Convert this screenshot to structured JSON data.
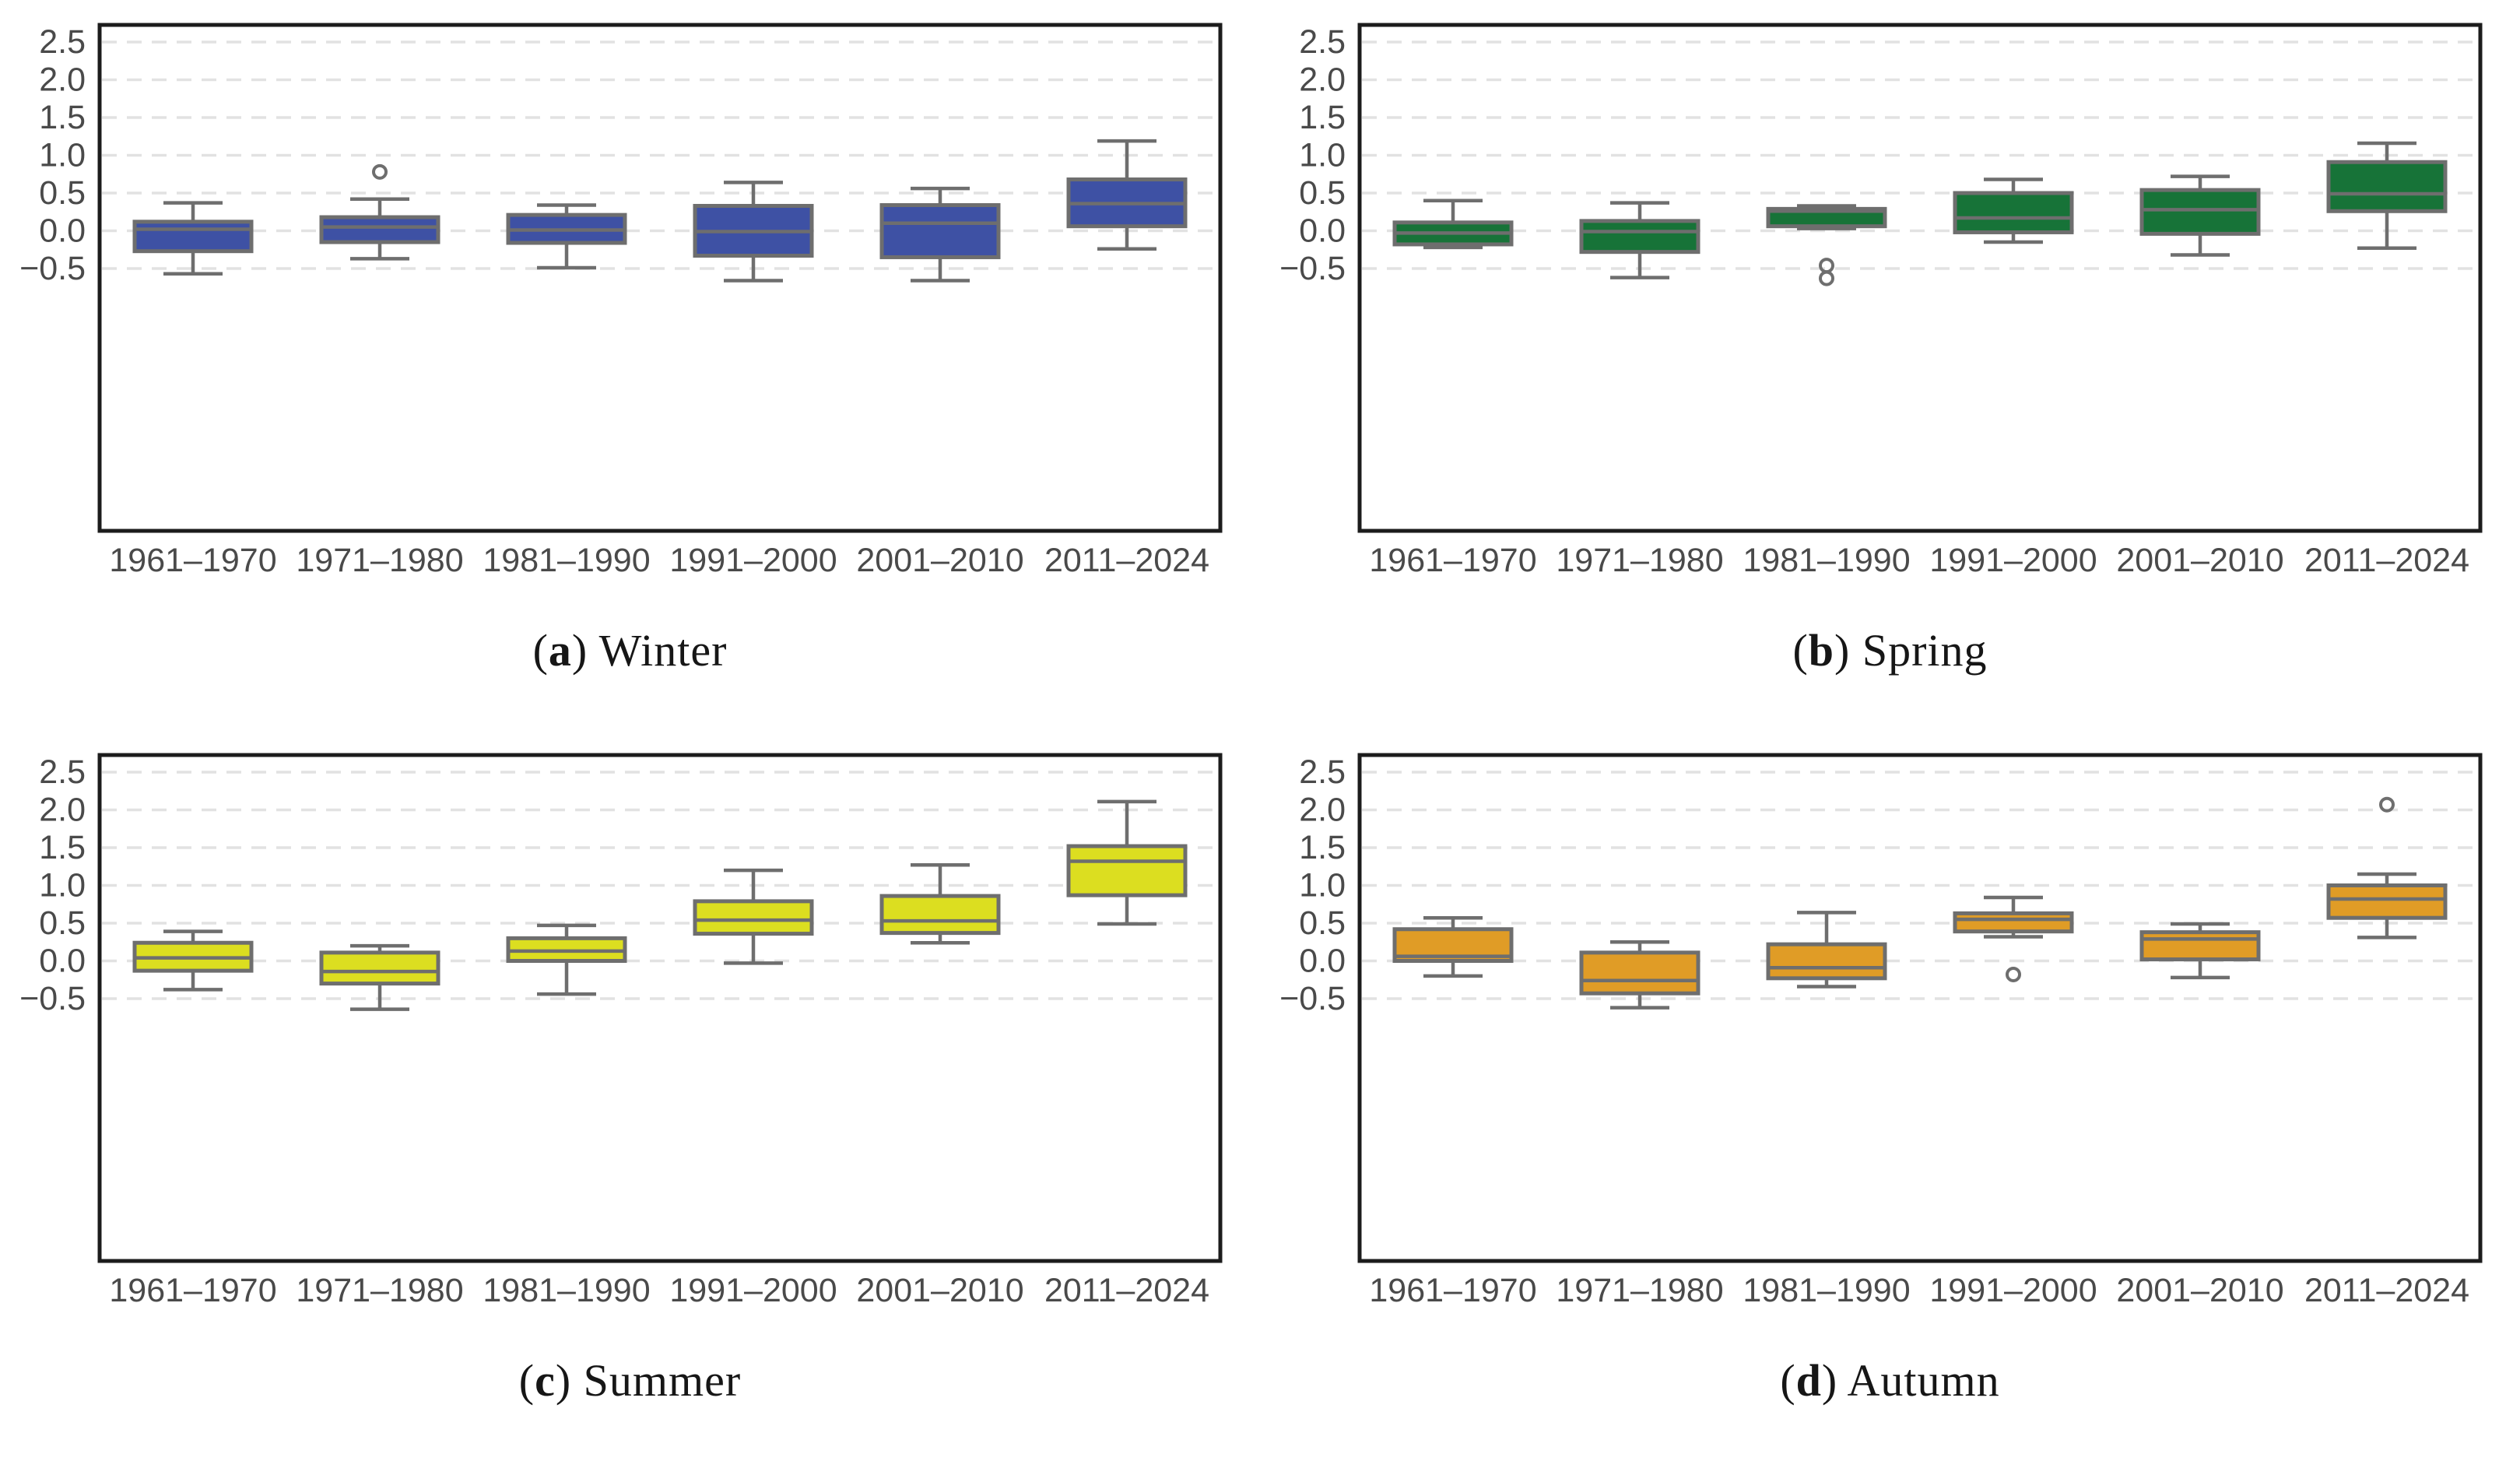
{
  "figure": {
    "background": "#ffffff",
    "grid_color": "#e2e2e2",
    "axis_border_color": "#1c1c1c",
    "box_stroke_color": "#6e6e6e",
    "tick_label_color": "#4a4a4a",
    "y_tick_labels": [
      "2.5",
      "2.0",
      "1.5",
      "1.0",
      "0.5",
      "0.0",
      "−0.5"
    ]
  },
  "chart_data": [
    {
      "type": "boxplot",
      "panel_index": 0,
      "caption": {
        "open": "(",
        "letter": "a",
        "close": ")",
        "label": " Winter"
      },
      "box_color": "#3e51a4",
      "ylim": [
        -0.85,
        2.79
      ],
      "y_ticks": [
        2.5,
        2.0,
        1.5,
        1.0,
        0.5,
        0.0,
        -0.5
      ],
      "grid": "dashed-horizontal",
      "categories": [
        "1961–1970",
        "1971–1980",
        "1981–1990",
        "1991–2000",
        "2001–2010",
        "2011–2024"
      ],
      "boxes": [
        {
          "category": "1961–1970",
          "whisker_low": -0.57,
          "q1": -0.27,
          "median": 0.02,
          "q3": 0.12,
          "whisker_high": 0.37,
          "outliers": []
        },
        {
          "category": "1971–1980",
          "whisker_low": -0.37,
          "q1": -0.15,
          "median": 0.05,
          "q3": 0.18,
          "whisker_high": 0.42,
          "outliers": [
            0.78
          ]
        },
        {
          "category": "1981–1990",
          "whisker_low": -0.49,
          "q1": -0.16,
          "median": 0.01,
          "q3": 0.21,
          "whisker_high": 0.34,
          "outliers": []
        },
        {
          "category": "1991–2000",
          "whisker_low": -0.66,
          "q1": -0.33,
          "median": -0.01,
          "q3": 0.33,
          "whisker_high": 0.64,
          "outliers": []
        },
        {
          "category": "2001–2010",
          "whisker_low": -0.66,
          "q1": -0.35,
          "median": 0.1,
          "q3": 0.34,
          "whisker_high": 0.56,
          "outliers": []
        },
        {
          "category": "2011–2024",
          "whisker_low": -0.24,
          "q1": 0.06,
          "median": 0.36,
          "q3": 0.68,
          "whisker_high": 1.19,
          "outliers": []
        }
      ]
    },
    {
      "type": "boxplot",
      "panel_index": 1,
      "caption": {
        "open": "(",
        "letter": "b",
        "close": ")",
        "label": " Spring"
      },
      "box_color": "#177338",
      "ylim": [
        -0.85,
        2.79
      ],
      "y_ticks": [
        2.5,
        2.0,
        1.5,
        1.0,
        0.5,
        0.0,
        -0.5
      ],
      "grid": "dashed-horizontal",
      "categories": [
        "1961–1970",
        "1971–1980",
        "1981–1990",
        "1991–2000",
        "2001–2010",
        "2011–2024"
      ],
      "boxes": [
        {
          "category": "1961–1970",
          "whisker_low": -0.22,
          "q1": -0.18,
          "median": -0.03,
          "q3": 0.11,
          "whisker_high": 0.4,
          "outliers": []
        },
        {
          "category": "1971–1980",
          "whisker_low": -0.62,
          "q1": -0.28,
          "median": -0.01,
          "q3": 0.13,
          "whisker_high": 0.37,
          "outliers": []
        },
        {
          "category": "1981–1990",
          "whisker_low": 0.03,
          "q1": 0.06,
          "median": 0.26,
          "q3": 0.29,
          "whisker_high": 0.33,
          "outliers": [
            -0.46,
            -0.63
          ]
        },
        {
          "category": "1991–2000",
          "whisker_low": -0.15,
          "q1": -0.02,
          "median": 0.17,
          "q3": 0.5,
          "whisker_high": 0.68,
          "outliers": []
        },
        {
          "category": "2001–2010",
          "whisker_low": -0.32,
          "q1": -0.04,
          "median": 0.28,
          "q3": 0.54,
          "whisker_high": 0.72,
          "outliers": []
        },
        {
          "category": "2011–2024",
          "whisker_low": -0.23,
          "q1": 0.26,
          "median": 0.49,
          "q3": 0.91,
          "whisker_high": 1.16,
          "outliers": []
        }
      ]
    },
    {
      "type": "boxplot",
      "panel_index": 2,
      "caption": {
        "open": "(",
        "letter": "c",
        "close": ")",
        "label": " Summer"
      },
      "box_color": "#dcde20",
      "ylim": [
        -0.85,
        2.79
      ],
      "y_ticks": [
        2.5,
        2.0,
        1.5,
        1.0,
        0.5,
        0.0,
        -0.5
      ],
      "grid": "dashed-horizontal",
      "categories": [
        "1961–1970",
        "1971–1980",
        "1981–1990",
        "1991–2000",
        "2001–2010",
        "2011–2024"
      ],
      "boxes": [
        {
          "category": "1961–1970",
          "whisker_low": -0.38,
          "q1": -0.13,
          "median": 0.04,
          "q3": 0.24,
          "whisker_high": 0.39,
          "outliers": []
        },
        {
          "category": "1971–1980",
          "whisker_low": -0.64,
          "q1": -0.3,
          "median": -0.14,
          "q3": 0.11,
          "whisker_high": 0.2,
          "outliers": []
        },
        {
          "category": "1981–1990",
          "whisker_low": -0.44,
          "q1": 0.0,
          "median": 0.13,
          "q3": 0.3,
          "whisker_high": 0.47,
          "outliers": []
        },
        {
          "category": "1991–2000",
          "whisker_low": -0.03,
          "q1": 0.36,
          "median": 0.54,
          "q3": 0.79,
          "whisker_high": 1.2,
          "outliers": []
        },
        {
          "category": "2001–2010",
          "whisker_low": 0.24,
          "q1": 0.37,
          "median": 0.53,
          "q3": 0.86,
          "whisker_high": 1.27,
          "outliers": []
        },
        {
          "category": "2011–2024",
          "whisker_low": 0.49,
          "q1": 0.87,
          "median": 1.32,
          "q3": 1.52,
          "whisker_high": 2.11,
          "outliers": []
        }
      ]
    },
    {
      "type": "boxplot",
      "panel_index": 3,
      "caption": {
        "open": "(",
        "letter": "d",
        "close": ")",
        "label": " Autumn"
      },
      "box_color": "#e09c26",
      "ylim": [
        -0.85,
        2.79
      ],
      "y_ticks": [
        2.5,
        2.0,
        1.5,
        1.0,
        0.5,
        0.0,
        -0.5
      ],
      "grid": "dashed-horizontal",
      "categories": [
        "1961–1970",
        "1971–1980",
        "1981–1990",
        "1991–2000",
        "2001–2010",
        "2011–2024"
      ],
      "boxes": [
        {
          "category": "1961–1970",
          "whisker_low": -0.2,
          "q1": 0.0,
          "median": 0.06,
          "q3": 0.42,
          "whisker_high": 0.57,
          "outliers": []
        },
        {
          "category": "1971–1980",
          "whisker_low": -0.62,
          "q1": -0.43,
          "median": -0.26,
          "q3": 0.11,
          "whisker_high": 0.25,
          "outliers": []
        },
        {
          "category": "1981–1990",
          "whisker_low": -0.34,
          "q1": -0.23,
          "median": -0.09,
          "q3": 0.22,
          "whisker_high": 0.64,
          "outliers": []
        },
        {
          "category": "1991–2000",
          "whisker_low": 0.32,
          "q1": 0.39,
          "median": 0.55,
          "q3": 0.63,
          "whisker_high": 0.84,
          "outliers": [
            -0.18
          ]
        },
        {
          "category": "2001–2010",
          "whisker_low": -0.22,
          "q1": 0.02,
          "median": 0.29,
          "q3": 0.38,
          "whisker_high": 0.49,
          "outliers": []
        },
        {
          "category": "2011–2024",
          "whisker_low": 0.31,
          "q1": 0.57,
          "median": 0.82,
          "q3": 1.0,
          "whisker_high": 1.15,
          "outliers": [
            2.07
          ]
        }
      ]
    }
  ]
}
